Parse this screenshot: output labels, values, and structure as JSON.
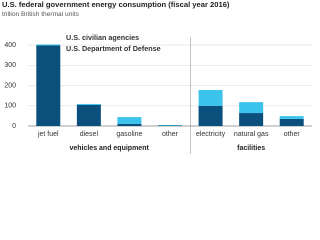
{
  "chart_data": {
    "type": "bar",
    "stacked": true,
    "title": "U.S. federal government energy consumption (fiscal year 2016)",
    "subtitle": "trillion British thermal units",
    "groups": [
      {
        "name": "vehicles and equipment",
        "categories": [
          "jet fuel",
          "diesel",
          "gasoline",
          "other"
        ]
      },
      {
        "name": "facilities",
        "categories": [
          "electricity",
          "natural gas",
          "other"
        ]
      }
    ],
    "series": [
      {
        "name": "U.S. Department of Defense",
        "color": "#0b4f7c",
        "values": [
          398,
          104,
          10,
          2,
          99,
          64,
          35
        ]
      },
      {
        "name": "U.S. civilian agencies",
        "color": "#3cc3ec",
        "values": [
          5,
          5,
          34,
          3,
          79,
          54,
          14
        ]
      }
    ],
    "ylim": [
      0,
      430
    ],
    "yticks": [
      0,
      100,
      200,
      300,
      400
    ],
    "grid": true
  }
}
